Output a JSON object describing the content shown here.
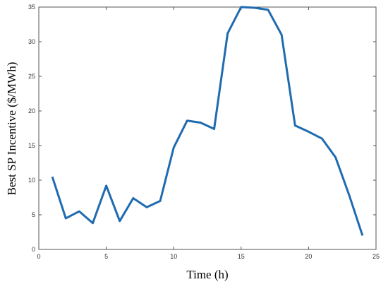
{
  "chart_data": {
    "type": "line",
    "x_label": "Time (h)",
    "y_label": "Best SP Incentive ($/MWh)",
    "x": [
      1,
      2,
      3,
      4,
      5,
      6,
      7,
      8,
      9,
      10,
      11,
      12,
      13,
      14,
      15,
      16,
      17,
      18,
      19,
      20,
      21,
      22,
      23,
      24
    ],
    "series": [
      {
        "color": "#1f6bb0",
        "values": [
          10.5,
          4.5,
          5.5,
          3.8,
          9.2,
          4.1,
          7.4,
          6.1,
          7.0,
          14.7,
          18.6,
          18.3,
          17.4,
          31.2,
          35.0,
          34.9,
          34.6,
          31.0,
          17.9,
          17.0,
          16.0,
          13.3,
          7.9,
          2.0
        ]
      }
    ],
    "xlim": [
      0,
      25
    ],
    "ylim": [
      0,
      35
    ],
    "xticks": [
      0,
      5,
      10,
      15,
      20,
      25
    ],
    "yticks": [
      0,
      5,
      10,
      15,
      20,
      25,
      30,
      35
    ]
  }
}
